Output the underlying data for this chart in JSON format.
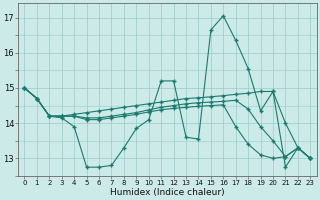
{
  "xlabel": "Humidex (Indice chaleur)",
  "x_values": [
    0,
    1,
    2,
    3,
    4,
    5,
    6,
    7,
    8,
    9,
    10,
    11,
    12,
    13,
    14,
    15,
    16,
    17,
    18,
    19,
    20,
    21,
    22,
    23
  ],
  "line1": [
    15.0,
    14.7,
    14.2,
    14.15,
    13.9,
    12.75,
    12.75,
    12.8,
    13.3,
    13.85,
    14.1,
    15.2,
    15.2,
    13.6,
    13.55,
    16.65,
    17.05,
    16.35,
    15.55,
    14.35,
    14.9,
    12.75,
    13.3,
    13.0
  ],
  "line2": [
    15.0,
    14.7,
    14.2,
    14.2,
    14.25,
    14.3,
    14.35,
    14.4,
    14.45,
    14.5,
    14.55,
    14.6,
    14.65,
    14.7,
    14.72,
    14.75,
    14.78,
    14.82,
    14.85,
    14.9,
    14.9,
    14.0,
    13.3,
    13.0
  ],
  "line3": [
    15.0,
    14.7,
    14.2,
    14.2,
    14.2,
    14.15,
    14.15,
    14.2,
    14.25,
    14.3,
    14.38,
    14.45,
    14.5,
    14.55,
    14.58,
    14.6,
    14.62,
    14.65,
    14.4,
    13.9,
    13.5,
    13.05,
    13.3,
    13.0
  ],
  "line4": [
    15.0,
    14.7,
    14.2,
    14.2,
    14.2,
    14.1,
    14.1,
    14.15,
    14.2,
    14.25,
    14.32,
    14.38,
    14.42,
    14.45,
    14.48,
    14.5,
    14.52,
    13.9,
    13.4,
    13.1,
    13.0,
    13.05,
    13.3,
    13.0
  ],
  "line_color": "#1a7a6e",
  "background_color": "#cceae8",
  "grid_color": "#99cccc",
  "ylim": [
    12.5,
    17.4
  ],
  "yticks": [
    13,
    14,
    15,
    16,
    17
  ],
  "xlim": [
    -0.5,
    23.5
  ]
}
